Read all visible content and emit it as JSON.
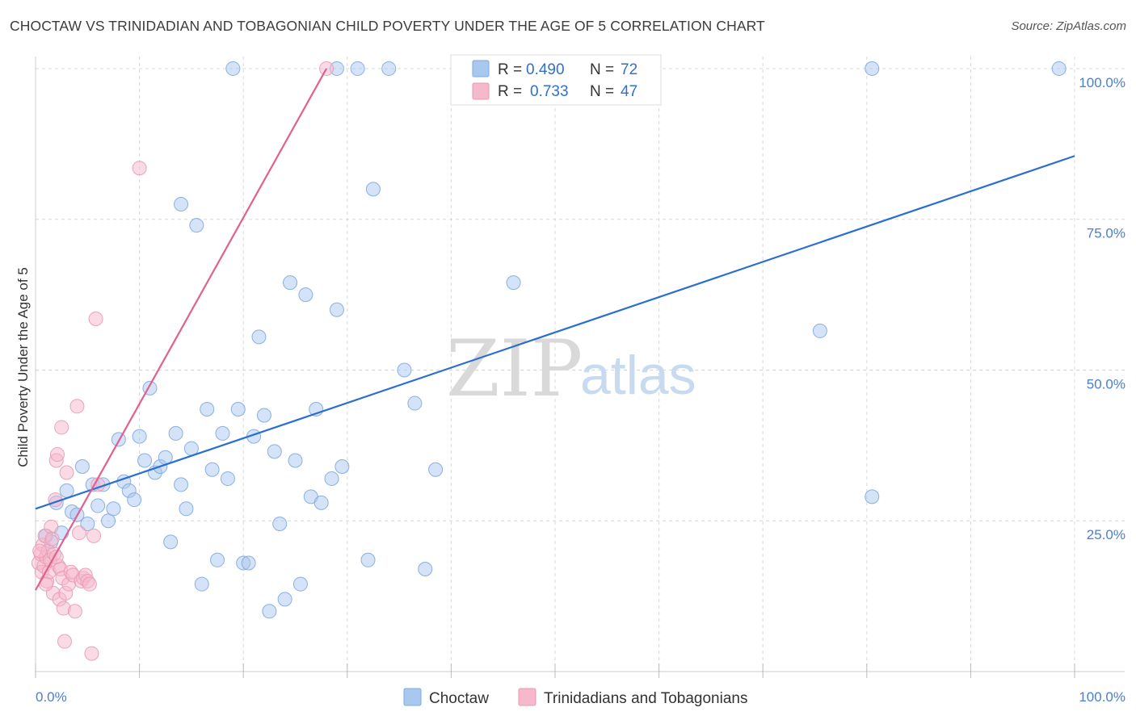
{
  "header": {
    "title": "CHOCTAW VS TRINIDADIAN AND TOBAGONIAN CHILD POVERTY UNDER THE AGE OF 5 CORRELATION CHART",
    "source": "Source: ZipAtlas.com"
  },
  "watermark": {
    "zip": "ZIP",
    "atlas": "atlas"
  },
  "colors": {
    "choctaw_fill": "#a9c8f0",
    "choctaw_line": "#2a6fd0",
    "trini_fill": "#f6b8cb",
    "trini_line": "#e0608e",
    "axis_text": "#4a7fcf",
    "grid": "#d8d8d8"
  },
  "legend": {
    "rows": [
      {
        "r_label": "R =",
        "r_value": "0.490",
        "n_label": "N =",
        "n_value": "72"
      },
      {
        "r_label": "R =",
        "r_value": "0.733",
        "n_label": "N =",
        "n_value": "47"
      }
    ]
  },
  "chart_data": {
    "type": "scatter",
    "title": "CHOCTAW VS TRINIDADIAN AND TOBAGONIAN CHILD POVERTY UNDER THE AGE OF 5 CORRELATION CHART",
    "xlabel": "",
    "ylabel": "Child Poverty Under the Age of 5",
    "xlim": [
      0,
      100
    ],
    "ylim": [
      0,
      102
    ],
    "x_tick_labels": [
      "0.0%",
      "100.0%"
    ],
    "y_ticks": [
      25,
      50,
      75,
      100
    ],
    "y_tick_labels": [
      "25.0%",
      "50.0%",
      "75.0%",
      "100.0%"
    ],
    "grid": true,
    "legend_position": "top-center",
    "series": [
      {
        "name": "Choctaw",
        "r": 0.49,
        "n": 72,
        "trend": {
          "x0": 0,
          "y0": 27.0,
          "x1": 100,
          "y1": 85.5
        },
        "points": [
          [
            1.0,
            22.5
          ],
          [
            1.5,
            21.5
          ],
          [
            2.0,
            28.0
          ],
          [
            2.5,
            23.0
          ],
          [
            3.0,
            30.0
          ],
          [
            3.5,
            26.5
          ],
          [
            4.0,
            26.0
          ],
          [
            4.5,
            34.0
          ],
          [
            5.0,
            24.5
          ],
          [
            5.5,
            31.0
          ],
          [
            6.0,
            27.5
          ],
          [
            6.5,
            31.0
          ],
          [
            7.0,
            25.0
          ],
          [
            7.5,
            27.0
          ],
          [
            8.0,
            38.5
          ],
          [
            8.5,
            31.5
          ],
          [
            9.0,
            30.0
          ],
          [
            9.5,
            28.5
          ],
          [
            10.0,
            39.0
          ],
          [
            10.5,
            35.0
          ],
          [
            11.0,
            47.0
          ],
          [
            11.5,
            33.0
          ],
          [
            12.0,
            34.0
          ],
          [
            12.5,
            35.5
          ],
          [
            13.0,
            21.5
          ],
          [
            13.5,
            39.5
          ],
          [
            14.0,
            77.5
          ],
          [
            14.5,
            27.0
          ],
          [
            15.0,
            37.0
          ],
          [
            15.5,
            74.0
          ],
          [
            16.0,
            14.5
          ],
          [
            16.5,
            43.5
          ],
          [
            17.0,
            33.5
          ],
          [
            17.5,
            18.5
          ],
          [
            18.0,
            39.5
          ],
          [
            18.5,
            32.0
          ],
          [
            19.0,
            100.0
          ],
          [
            19.5,
            43.5
          ],
          [
            20.0,
            18.0
          ],
          [
            20.5,
            18.0
          ],
          [
            21.0,
            39.0
          ],
          [
            21.5,
            55.5
          ],
          [
            22.0,
            42.5
          ],
          [
            22.5,
            10.0
          ],
          [
            23.0,
            36.5
          ],
          [
            23.5,
            24.5
          ],
          [
            24.0,
            12.0
          ],
          [
            24.5,
            64.5
          ],
          [
            25.0,
            35.0
          ],
          [
            25.5,
            14.5
          ],
          [
            26.0,
            62.5
          ],
          [
            26.5,
            29.0
          ],
          [
            27.0,
            43.5
          ],
          [
            27.5,
            28.0
          ],
          [
            28.5,
            32.0
          ],
          [
            29.0,
            60.0
          ],
          [
            29.5,
            34.0
          ],
          [
            29.0,
            100.0
          ],
          [
            31.0,
            100.0
          ],
          [
            32.0,
            18.5
          ],
          [
            32.5,
            80.0
          ],
          [
            34.0,
            100.0
          ],
          [
            35.5,
            50.0
          ],
          [
            36.5,
            44.5
          ],
          [
            37.5,
            17.0
          ],
          [
            38.5,
            33.5
          ],
          [
            46.0,
            64.5
          ],
          [
            75.5,
            56.5
          ],
          [
            80.5,
            29.0
          ],
          [
            80.5,
            100.0
          ],
          [
            98.5,
            100.0
          ],
          [
            14.0,
            31.0
          ]
        ]
      },
      {
        "name": "Trinidadians and Tobagonians",
        "r": 0.733,
        "n": 47,
        "trend": {
          "x0": 0,
          "y0": 13.5,
          "x1": 28.0,
          "y1": 100.0
        },
        "points": [
          [
            0.3,
            18.0
          ],
          [
            0.5,
            19.5
          ],
          [
            0.6,
            16.5
          ],
          [
            0.7,
            21.0
          ],
          [
            0.8,
            17.5
          ],
          [
            0.9,
            22.5
          ],
          [
            1.0,
            19.0
          ],
          [
            1.1,
            15.0
          ],
          [
            1.2,
            20.0
          ],
          [
            1.3,
            16.5
          ],
          [
            1.4,
            18.5
          ],
          [
            1.5,
            24.0
          ],
          [
            1.6,
            22.0
          ],
          [
            1.7,
            13.0
          ],
          [
            1.8,
            19.5
          ],
          [
            1.9,
            28.5
          ],
          [
            2.0,
            35.0
          ],
          [
            2.1,
            36.0
          ],
          [
            2.2,
            17.5
          ],
          [
            2.3,
            12.0
          ],
          [
            2.4,
            17.0
          ],
          [
            2.5,
            40.5
          ],
          [
            2.6,
            15.5
          ],
          [
            2.7,
            10.5
          ],
          [
            2.8,
            5.0
          ],
          [
            2.9,
            13.0
          ],
          [
            3.0,
            33.0
          ],
          [
            3.2,
            14.5
          ],
          [
            3.4,
            16.5
          ],
          [
            3.6,
            16.0
          ],
          [
            3.8,
            10.0
          ],
          [
            4.0,
            44.0
          ],
          [
            4.2,
            23.0
          ],
          [
            4.4,
            15.0
          ],
          [
            4.6,
            15.5
          ],
          [
            4.8,
            16.0
          ],
          [
            5.0,
            15.0
          ],
          [
            5.2,
            14.5
          ],
          [
            5.4,
            3.0
          ],
          [
            5.6,
            22.5
          ],
          [
            5.8,
            58.5
          ],
          [
            6.0,
            31.0
          ],
          [
            10.0,
            83.5
          ],
          [
            28.0,
            100.0
          ],
          [
            0.4,
            20.0
          ],
          [
            1.0,
            14.5
          ],
          [
            2.0,
            19.0
          ]
        ]
      }
    ]
  },
  "bottom_legend": {
    "items": [
      {
        "label": "Choctaw"
      },
      {
        "label": "Trinidadians and Tobagonians"
      }
    ]
  }
}
